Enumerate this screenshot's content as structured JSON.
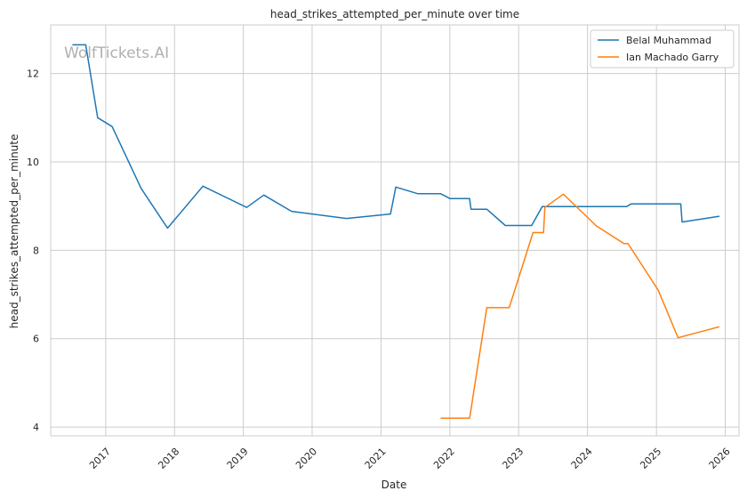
{
  "watermark": "WolfTickets.AI",
  "chart_data": {
    "type": "line",
    "title": "head_strikes_attempted_per_minute over time",
    "xlabel": "Date",
    "ylabel": "head_strikes_attempted_per_minute",
    "x_ticks": [
      "2017",
      "2018",
      "2019",
      "2020",
      "2021",
      "2022",
      "2023",
      "2024",
      "2025",
      "2026"
    ],
    "y_ticks": [
      4,
      6,
      8,
      10,
      12
    ],
    "xlim": [
      "2016-03-15",
      "2026-03-15"
    ],
    "ylim": [
      3.8,
      13.1
    ],
    "grid": true,
    "legend_position": "top-right",
    "series": [
      {
        "name": "Belal Muhammad",
        "color": "#1f77b4",
        "points": [
          [
            "2016-07-08",
            12.65
          ],
          [
            "2016-09-17",
            12.65
          ],
          [
            "2016-11-19",
            11.0
          ],
          [
            "2017-02-04",
            10.8
          ],
          [
            "2017-07-08",
            9.4
          ],
          [
            "2017-11-25",
            8.5
          ],
          [
            "2018-06-01",
            9.45
          ],
          [
            "2019-01-19",
            8.97
          ],
          [
            "2019-04-20",
            9.25
          ],
          [
            "2019-09-14",
            8.88
          ],
          [
            "2020-07-01",
            8.72
          ],
          [
            "2021-02-20",
            8.82
          ],
          [
            "2021-03-20",
            9.43
          ],
          [
            "2021-07-15",
            9.28
          ],
          [
            "2021-11-13",
            9.28
          ],
          [
            "2022-01-01",
            9.17
          ],
          [
            "2022-04-16",
            9.17
          ],
          [
            "2022-04-23",
            8.93
          ],
          [
            "2022-07-16",
            8.93
          ],
          [
            "2022-10-22",
            8.56
          ],
          [
            "2023-03-11",
            8.56
          ],
          [
            "2023-05-06",
            8.99
          ],
          [
            "2024-07-27",
            8.99
          ],
          [
            "2024-08-20",
            9.05
          ],
          [
            "2025-05-10",
            9.05
          ],
          [
            "2025-05-17",
            8.64
          ],
          [
            "2025-12-01",
            8.77
          ]
        ]
      },
      {
        "name": "Ian Machado Garry",
        "color": "#ff7f0e",
        "points": [
          [
            "2021-11-13",
            4.2
          ],
          [
            "2022-04-16",
            4.2
          ],
          [
            "2022-07-16",
            6.7
          ],
          [
            "2022-11-12",
            6.7
          ],
          [
            "2023-03-18",
            8.4
          ],
          [
            "2023-05-13",
            8.4
          ],
          [
            "2023-05-20",
            8.97
          ],
          [
            "2023-08-26",
            9.27
          ],
          [
            "2024-02-17",
            8.55
          ],
          [
            "2024-07-13",
            8.15
          ],
          [
            "2024-08-03",
            8.15
          ],
          [
            "2025-01-10",
            7.1
          ],
          [
            "2025-04-26",
            6.02
          ],
          [
            "2025-12-01",
            6.27
          ]
        ]
      }
    ]
  }
}
